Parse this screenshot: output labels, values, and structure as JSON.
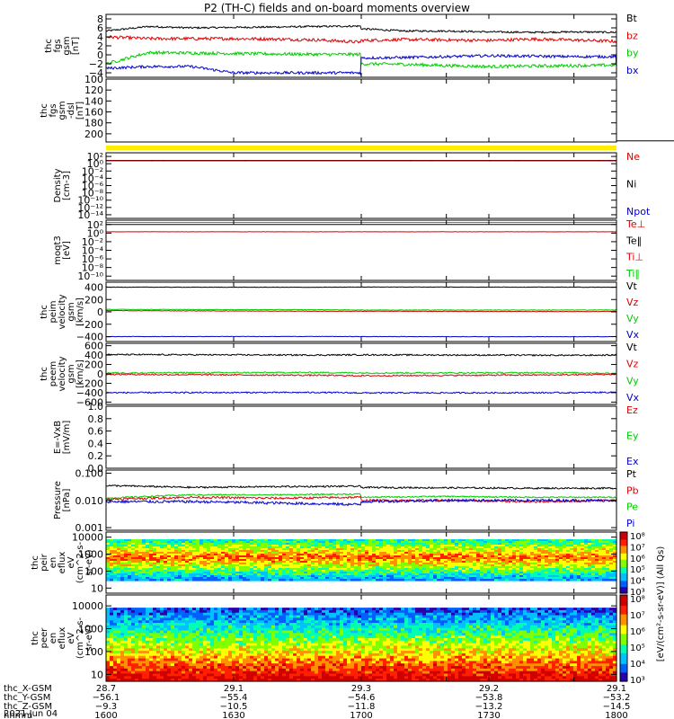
{
  "title": "P2 (TH-C) fields and on-board moments overview",
  "colors": {
    "black": "#000000",
    "red": "#dd0000",
    "green": "#00cc00",
    "blue": "#0000cc",
    "yellow": "#ffee00"
  },
  "chart_data": [
    {
      "id": "fgs",
      "type": "line",
      "ylabel": [
        "thc",
        "fgs",
        "gsm",
        "[nT]"
      ],
      "ylim": [
        -5,
        9
      ],
      "yticks": [
        8,
        6,
        4,
        2,
        0,
        -2,
        -4
      ],
      "ytick_labels": [
        "8",
        "6",
        "4",
        "2",
        "0",
        "−2",
        "−4"
      ],
      "legend": [
        {
          "name": "Bt",
          "color": "#000000"
        },
        {
          "name": "bz",
          "color": "#dd0000"
        },
        {
          "name": "by",
          "color": "#00cc00"
        },
        {
          "name": "bx",
          "color": "#0000cc"
        }
      ],
      "series": [
        {
          "name": "Bt",
          "color": "#000000",
          "x": [
            1600,
            1610,
            1620,
            1630,
            1640,
            1650,
            1660,
            1670,
            1680,
            1690,
            1700,
            1710,
            1720,
            1730,
            1740,
            1750,
            1760,
            1770,
            1780,
            1790,
            1800
          ],
          "y": [
            5.3,
            6.3,
            6.0,
            6.1,
            6.2,
            6.3,
            6.4,
            6.0,
            6.1,
            6.5,
            5.8,
            5.3,
            5.3,
            5.1,
            5.0,
            5.1,
            5.0,
            5.1,
            5.2,
            5.1,
            5.0
          ],
          "noise": 0.2
        },
        {
          "name": "bz",
          "color": "#dd0000",
          "x": [
            1600,
            1610,
            1620,
            1630,
            1640,
            1650,
            1660,
            1670,
            1680,
            1690,
            1700,
            1710,
            1720,
            1730,
            1740,
            1750,
            1760,
            1770,
            1780,
            1790,
            1800
          ],
          "y": [
            4.0,
            3.6,
            3.6,
            3.6,
            3.5,
            3.3,
            2.8,
            2.9,
            3.0,
            2.8,
            3.2,
            3.4,
            3.3,
            3.2,
            3.5,
            3.3,
            3.0,
            2.6,
            3.5,
            3.1,
            3.2
          ],
          "noise": 0.35
        },
        {
          "name": "by",
          "color": "#00cc00",
          "x": [
            1600,
            1610,
            1620,
            1630,
            1640,
            1650,
            1660,
            1670,
            1680,
            1690,
            1700,
            1710,
            1720,
            1730,
            1740,
            1750,
            1760,
            1770,
            1780,
            1790,
            1800
          ],
          "y": [
            -2.0,
            0.5,
            0.4,
            0.3,
            0.2,
            0.1,
            0.1,
            -1.5,
            -1.8,
            -2.0,
            -2.0,
            -2.1,
            -2.4,
            -2.6,
            -2.5,
            -2.4,
            -2.3,
            -2.5,
            -2.5,
            -1.5,
            0.3
          ],
          "noise": 0.35
        },
        {
          "name": "bx",
          "color": "#0000cc",
          "x": [
            1600,
            1610,
            1620,
            1630,
            1640,
            1650,
            1660,
            1670,
            1680,
            1690,
            1700,
            1710,
            1720,
            1730,
            1740,
            1750,
            1760,
            1770,
            1780,
            1790,
            1800
          ],
          "y": [
            -3.0,
            -2.6,
            -2.6,
            -4.0,
            -4.0,
            -4.0,
            -4.0,
            -1.5,
            -1.0,
            -0.8,
            -0.7,
            -0.6,
            -0.4,
            -0.2,
            -0.3,
            -0.4,
            -0.4,
            -0.3,
            -0.6,
            -1.0,
            -2.0
          ],
          "noise": 0.3
        }
      ]
    },
    {
      "id": "fgs_dsl",
      "type": "line",
      "ylabel": [
        "thc",
        "fgs",
        "gsm",
        "-dsl",
        "[nT]"
      ],
      "ylim": [
        215,
        100
      ],
      "inverted": true,
      "yticks": [
        100,
        120,
        140,
        160,
        180,
        200
      ],
      "ytick_labels": [
        "100",
        "120",
        "140",
        "160",
        "180",
        "200"
      ],
      "legend": [],
      "series": [
        {
          "name": "",
          "color": "#000000",
          "x": [
            1790,
            1800
          ],
          "y": [
            213,
            213
          ],
          "noise": 0
        }
      ]
    },
    {
      "id": "density",
      "type": "line",
      "log": true,
      "ylabel": [
        "Density",
        "[cm-3]"
      ],
      "ylim": [
        1e-15,
        1000.0
      ],
      "yticks": [
        100.0,
        1.0,
        0.01,
        0.0001,
        1e-06,
        1e-08,
        1e-10,
        1e-12,
        1e-14
      ],
      "ytick_labels": [
        "10²",
        "10⁰",
        "10⁻²",
        "10⁻⁴",
        "10⁻⁶",
        "10⁻⁸",
        "10⁻¹⁰",
        "10⁻¹²",
        "10⁻¹⁴"
      ],
      "legend": [
        {
          "name": "Ne",
          "color": "#dd0000"
        },
        {
          "name": "Ni",
          "color": "#000000"
        },
        {
          "name": "Npot",
          "color": "#0000cc"
        }
      ],
      "series": [
        {
          "name": "Ni",
          "color": "#000000",
          "x": [
            1600,
            1800
          ],
          "y": [
            8,
            8
          ],
          "noise": 0
        },
        {
          "name": "Ne",
          "color": "#dd0000",
          "x": [
            1600,
            1800
          ],
          "y": [
            6,
            6
          ],
          "noise": 0.02
        }
      ]
    },
    {
      "id": "temp",
      "type": "line",
      "log": true,
      "ylabel": [
        "moqt3",
        "[eV]"
      ],
      "ylim": [
        1e-11,
        1000.0
      ],
      "yticks": [
        100.0,
        1.0,
        0.01,
        0.0001,
        1e-06,
        1e-08,
        1e-10
      ],
      "ytick_labels": [
        "10²",
        "10⁰",
        "10⁻²",
        "10⁻⁴",
        "10⁻⁶",
        "10⁻⁸",
        "10⁻¹⁰"
      ],
      "legend": [
        {
          "name": "Te⊥",
          "color": "#dd0000"
        },
        {
          "name": "Te‖",
          "color": "#000000"
        },
        {
          "name": "Ti⊥",
          "color": "#dd0000"
        },
        {
          "name": "Ti‖",
          "color": "#00cc00"
        }
      ],
      "series": [
        {
          "name": "Ti‖",
          "color": "#00cc00",
          "x": [
            1600,
            1800
          ],
          "y": [
            300,
            300
          ],
          "noise": 0
        },
        {
          "name": "Te‖",
          "color": "#000000",
          "x": [
            1600,
            1800
          ],
          "y": [
            100,
            100
          ],
          "noise": 0
        },
        {
          "name": "Te⊥",
          "color": "#dd0000",
          "x": [
            1600,
            1800
          ],
          "y": [
            2,
            2
          ],
          "noise": 0.05
        }
      ]
    },
    {
      "id": "peim",
      "type": "line",
      "ylabel": [
        "thc",
        "peim",
        "velocity",
        "gsm",
        "[km/s]"
      ],
      "ylim": [
        -480,
        480
      ],
      "yticks": [
        400,
        200,
        0,
        -200,
        -400
      ],
      "ytick_labels": [
        "400",
        "200",
        "0",
        "−200",
        "−400"
      ],
      "legend": [
        {
          "name": "Vt",
          "color": "#000000"
        },
        {
          "name": "Vz",
          "color": "#dd0000"
        },
        {
          "name": "Vy",
          "color": "#00cc00"
        },
        {
          "name": "Vx",
          "color": "#0000cc"
        }
      ],
      "series": [
        {
          "name": "Vt",
          "color": "#000000",
          "x": [
            1600,
            1650,
            1700,
            1750,
            1780,
            1800
          ],
          "y": [
            400,
            398,
            402,
            400,
            395,
            410
          ],
          "noise": 3
        },
        {
          "name": "Vy",
          "color": "#00cc00",
          "x": [
            1600,
            1650,
            1700,
            1750,
            1780,
            1800
          ],
          "y": [
            40,
            35,
            30,
            30,
            35,
            40
          ],
          "noise": 4
        },
        {
          "name": "Vz",
          "color": "#dd0000",
          "x": [
            1600,
            1650,
            1700,
            1750,
            1780,
            1800
          ],
          "y": [
            20,
            10,
            10,
            5,
            15,
            10
          ],
          "noise": 4
        },
        {
          "name": "Vx",
          "color": "#0000cc",
          "x": [
            1600,
            1650,
            1700,
            1750,
            1780,
            1800
          ],
          "y": [
            -400,
            -398,
            -400,
            -402,
            -395,
            -410
          ],
          "noise": 3
        }
      ]
    },
    {
      "id": "peem",
      "type": "line",
      "ylabel": [
        "thc",
        "peem",
        "velocity",
        "gsm",
        "[km/s]"
      ],
      "ylim": [
        -650,
        650
      ],
      "yticks": [
        600,
        400,
        200,
        0,
        -200,
        -400,
        -600
      ],
      "ytick_labels": [
        "600",
        "400",
        "200",
        "0",
        "−200",
        "−400",
        "−600"
      ],
      "legend": [
        {
          "name": "Vt",
          "color": "#000000"
        },
        {
          "name": "Vz",
          "color": "#dd0000"
        },
        {
          "name": "Vy",
          "color": "#00cc00"
        },
        {
          "name": "Vx",
          "color": "#0000cc"
        }
      ],
      "series": [
        {
          "name": "Vt",
          "color": "#000000",
          "x": [
            1600,
            1650,
            1700,
            1750,
            1800
          ],
          "y": [
            410,
            400,
            405,
            395,
            400
          ],
          "noise": 15
        },
        {
          "name": "Vy",
          "color": "#00cc00",
          "x": [
            1600,
            1650,
            1700,
            1750,
            1800
          ],
          "y": [
            20,
            30,
            20,
            25,
            10
          ],
          "noise": 15
        },
        {
          "name": "Vz",
          "color": "#dd0000",
          "x": [
            1600,
            1650,
            1700,
            1750,
            1800
          ],
          "y": [
            -10,
            -30,
            -40,
            -20,
            -10
          ],
          "noise": 15
        },
        {
          "name": "Vx",
          "color": "#0000cc",
          "x": [
            1600,
            1650,
            1700,
            1750,
            1800
          ],
          "y": [
            -400,
            -395,
            -405,
            -400,
            -390
          ],
          "noise": 15
        }
      ]
    },
    {
      "id": "efield",
      "type": "line",
      "ylabel": [
        "E=-VxB",
        "[mV/m]"
      ],
      "ylim": [
        0,
        1
      ],
      "yticks": [
        1.0,
        0.8,
        0.6,
        0.4,
        0.2,
        0.0
      ],
      "ytick_labels": [
        "1.0",
        "0.8",
        "0.6",
        "0.4",
        "0.2",
        "0.0"
      ],
      "legend": [
        {
          "name": "Ez",
          "color": "#dd0000"
        },
        {
          "name": "Ey",
          "color": "#00cc00"
        },
        {
          "name": "Ex",
          "color": "#0000cc"
        }
      ],
      "series": []
    },
    {
      "id": "pressure",
      "type": "line",
      "log": true,
      "ylabel": [
        "Pressure",
        "[nPa]"
      ],
      "ylim": [
        0.0008,
        0.13
      ],
      "yticks": [
        0.1,
        0.01,
        0.001
      ],
      "ytick_labels": [
        "0.100",
        "0.010",
        "0.001"
      ],
      "legend": [
        {
          "name": "Pt",
          "color": "#000000"
        },
        {
          "name": "Pb",
          "color": "#dd0000"
        },
        {
          "name": "Pe",
          "color": "#00cc00"
        },
        {
          "name": "Pi",
          "color": "#0000cc"
        }
      ],
      "series": [
        {
          "name": "Pt",
          "color": "#000000",
          "x": [
            1600,
            1620,
            1640,
            1660,
            1680,
            1700,
            1720,
            1740,
            1760,
            1780,
            1800
          ],
          "y": [
            0.035,
            0.03,
            0.032,
            0.033,
            0.03,
            0.03,
            0.029,
            0.028,
            0.028,
            0.027,
            0.028
          ],
          "noise": 0.06
        },
        {
          "name": "Pe",
          "color": "#00cc00",
          "x": [
            1600,
            1620,
            1640,
            1660,
            1680,
            1700,
            1720,
            1740,
            1760,
            1780,
            1800
          ],
          "y": [
            0.012,
            0.016,
            0.016,
            0.017,
            0.016,
            0.013,
            0.014,
            0.013,
            0.013,
            0.012,
            0.013
          ],
          "noise": 0.05
        },
        {
          "name": "Pb",
          "color": "#dd0000",
          "x": [
            1600,
            1620,
            1640,
            1660,
            1680,
            1700,
            1720,
            1740,
            1760,
            1780,
            1800
          ],
          "y": [
            0.011,
            0.013,
            0.012,
            0.013,
            0.011,
            0.01,
            0.01,
            0.009,
            0.01,
            0.011,
            0.01
          ],
          "noise": 0.08
        },
        {
          "name": "Pi",
          "color": "#0000cc",
          "x": [
            1600,
            1620,
            1640,
            1660,
            1680,
            1700,
            1720,
            1740,
            1760,
            1780,
            1800
          ],
          "y": [
            0.009,
            0.009,
            0.008,
            0.007,
            0.008,
            0.009,
            0.01,
            0.01,
            0.01,
            0.01,
            0.011
          ],
          "noise": 0.1
        }
      ]
    },
    {
      "id": "peir",
      "type": "heatmap",
      "log": true,
      "ylabel": [
        "thc",
        "peir",
        "en",
        "eflux",
        "eV",
        "(cm^2-s-",
        "sr-eV)"
      ],
      "ylim": [
        5,
        20000
      ],
      "yticks": [
        10000,
        1000,
        100,
        10
      ],
      "ytick_labels": [
        "10000",
        "1000",
        "100",
        "10"
      ],
      "band": [
        30,
        8000
      ]
    },
    {
      "id": "peer",
      "type": "heatmap",
      "log": true,
      "ylabel": [
        "thc",
        "peer",
        "en",
        "eflux",
        "eV",
        "(cm^2-s-",
        "sr-eV)"
      ],
      "ylim": [
        5,
        30000
      ],
      "yticks": [
        10000,
        1000,
        100,
        10
      ],
      "ytick_labels": [
        "10000",
        "1000",
        "100",
        "10"
      ],
      "band": [
        5,
        8000
      ]
    }
  ],
  "colorbar": {
    "label": "[eV/(cm²-s-sr-eV)] (All Qs)",
    "ticks": [
      "10⁸",
      "10⁷",
      "10⁶",
      "10⁵",
      "10⁴",
      "10³"
    ],
    "ticks2": [
      "10⁸",
      "10⁷",
      "10⁶",
      "10⁵",
      "10⁴",
      "10³"
    ]
  },
  "xaxis": {
    "range": [
      1600,
      1800
    ],
    "ticks": [
      1600,
      1630,
      1700,
      1730,
      1800
    ],
    "tick_x": [
      1600,
      1630,
      1660,
      1690,
      1720,
      1750,
      1780,
      1800
    ],
    "rows": [
      {
        "label": "thc_X-GSM",
        "values": [
          "28.7",
          "29.1",
          "29.3",
          "29.2",
          "29.1"
        ]
      },
      {
        "label": "thc_Y-GSM",
        "values": [
          "−56.1",
          "−55.4",
          "−54.6",
          "−53.8",
          "−53.2"
        ]
      },
      {
        "label": "thc_Z-GSM",
        "values": [
          "−9.3",
          "−10.5",
          "−11.8",
          "−13.2",
          "−14.5"
        ]
      },
      {
        "label": "hhmm",
        "values": [
          "1600",
          "1630",
          "1700",
          "1730",
          "1800"
        ]
      }
    ],
    "date": "2021 Jun 04"
  }
}
